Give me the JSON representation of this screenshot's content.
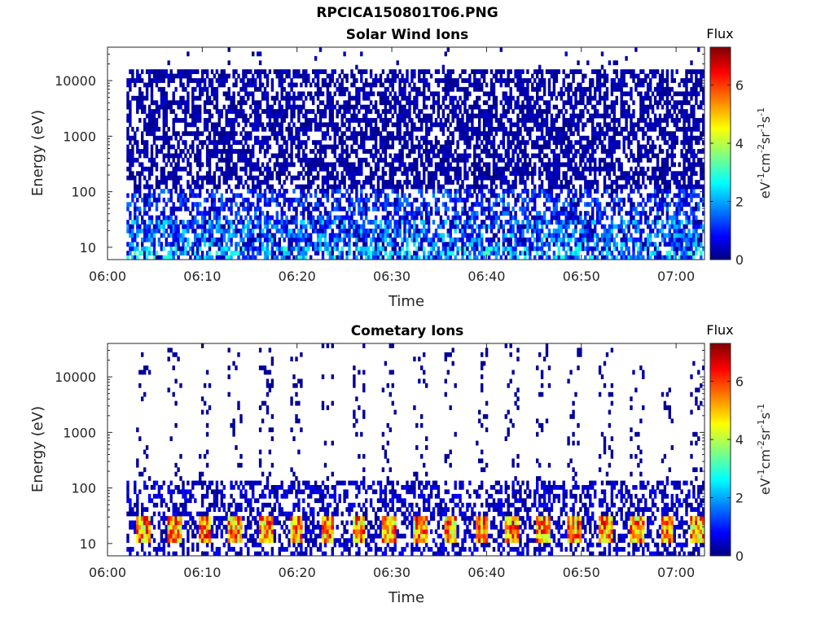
{
  "figure": {
    "filename": "RPCICA150801T06.PNG"
  },
  "chart_data": [
    {
      "type": "heatmap",
      "title": "Solar Wind Ions",
      "xlabel": "Time",
      "ylabel": "Energy (eV)",
      "x_ticks": [
        "06:00",
        "06:10",
        "06:20",
        "06:30",
        "06:40",
        "06:50",
        "07:00"
      ],
      "x_range": [
        "06:00",
        "07:03"
      ],
      "y_scale": "log",
      "y_ticks": [
        "10",
        "100",
        "1000",
        "10000"
      ],
      "y_range": [
        6,
        40000
      ],
      "colorbar": {
        "title": "Flux",
        "label": "eV-1cm-2sr-1s-1",
        "ticks": [
          "0",
          "2",
          "4",
          "6"
        ],
        "range": [
          0,
          7.3
        ],
        "colormap": "jet"
      },
      "data_start": "06:02",
      "bands": [
        {
          "e_min": 6,
          "e_max": 10,
          "max_flux": 3.3,
          "cover": 0.7
        },
        {
          "e_min": 10,
          "e_max": 30,
          "max_flux": 2.6,
          "cover": 0.72
        },
        {
          "e_min": 30,
          "e_max": 120,
          "max_flux": 1.9,
          "cover": 0.55
        },
        {
          "e_min": 120,
          "e_max": 15000,
          "max_flux": 0.6,
          "cover": 0.6
        },
        {
          "e_min": 15000,
          "e_max": 40000,
          "max_flux": 0.5,
          "cover": 0.03
        }
      ],
      "grid": false
    },
    {
      "type": "heatmap",
      "title": "Cometary Ions",
      "xlabel": "Time",
      "ylabel": "Energy (eV)",
      "x_ticks": [
        "06:00",
        "06:10",
        "06:20",
        "06:30",
        "06:40",
        "06:50",
        "07:00"
      ],
      "x_range": [
        "06:00",
        "07:03"
      ],
      "y_scale": "log",
      "y_ticks": [
        "10",
        "100",
        "1000",
        "10000"
      ],
      "y_range": [
        6,
        40000
      ],
      "colorbar": {
        "title": "Flux",
        "label": "eV-1cm-2sr-1s-1",
        "ticks": [
          "0",
          "2",
          "4",
          "6"
        ],
        "range": [
          0,
          7.3
        ],
        "colormap": "jet"
      },
      "data_start": "06:02",
      "bursts_minutes": [
        3.7,
        6.9,
        10.1,
        13.3,
        16.6,
        19.8,
        23.1,
        26.4,
        29.6,
        32.9,
        36.1,
        39.4,
        42.6,
        45.9,
        49.1,
        52.4,
        55.7,
        58.9,
        62.1
      ],
      "burst_energy_range": [
        10,
        30
      ],
      "burst_max_flux": 6.8,
      "background": {
        "e_min": 6,
        "e_max": 130,
        "max_flux": 1.0,
        "cover": 0.45
      },
      "grid": false
    }
  ]
}
